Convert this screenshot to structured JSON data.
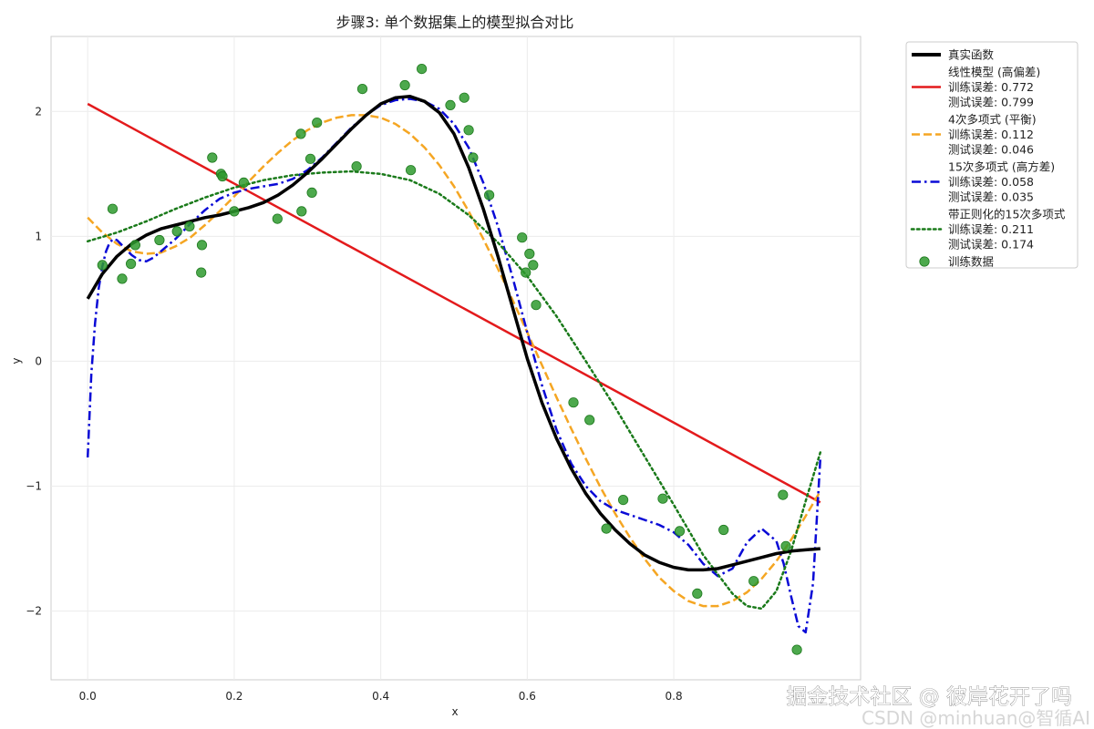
{
  "chart_data": {
    "type": "line",
    "title": "步骤3: 单个数据集上的模型拟合对比",
    "xlabel": "x",
    "ylabel": "y",
    "xlim": [
      -0.05,
      1.055
    ],
    "ylim": [
      -2.55,
      2.6
    ],
    "xticks": [
      0.0,
      0.2,
      0.4,
      0.6,
      0.8
    ],
    "xtick_labels": [
      "0.0",
      "0.2",
      "0.4",
      "0.6",
      "0.8"
    ],
    "yticks": [
      -2,
      -1,
      0,
      1,
      2
    ],
    "ytick_labels": [
      "−2",
      "−1",
      "0",
      "1",
      "2"
    ],
    "grid": true,
    "legend_position": "outside-top-right",
    "series": [
      {
        "name": "真实函数",
        "color": "#000000",
        "dash": "solid",
        "width": 3.5,
        "x": [
          0.0,
          0.02,
          0.04,
          0.06,
          0.08,
          0.1,
          0.12,
          0.14,
          0.16,
          0.18,
          0.2,
          0.22,
          0.24,
          0.26,
          0.28,
          0.3,
          0.32,
          0.34,
          0.36,
          0.38,
          0.4,
          0.42,
          0.44,
          0.46,
          0.48,
          0.5,
          0.52,
          0.54,
          0.56,
          0.58,
          0.6,
          0.62,
          0.64,
          0.66,
          0.68,
          0.7,
          0.72,
          0.74,
          0.76,
          0.78,
          0.8,
          0.82,
          0.84,
          0.86,
          0.88,
          0.9,
          0.92,
          0.94,
          0.96,
          0.98,
          1.0
        ],
        "y": [
          0.5,
          0.7,
          0.84,
          0.94,
          1.01,
          1.06,
          1.09,
          1.12,
          1.15,
          1.17,
          1.2,
          1.23,
          1.27,
          1.33,
          1.41,
          1.51,
          1.62,
          1.74,
          1.86,
          1.97,
          2.06,
          2.11,
          2.12,
          2.08,
          1.99,
          1.82,
          1.55,
          1.22,
          0.84,
          0.43,
          0.02,
          -0.33,
          -0.62,
          -0.86,
          -1.06,
          -1.22,
          -1.35,
          -1.46,
          -1.55,
          -1.61,
          -1.65,
          -1.67,
          -1.67,
          -1.66,
          -1.63,
          -1.6,
          -1.57,
          -1.54,
          -1.52,
          -1.51,
          -1.5
        ]
      },
      {
        "name": "线性模型 (高偏差)",
        "train_error_label": "训练误差: 0.772",
        "test_error_label": "测试误差: 0.799",
        "color": "#e31a1c",
        "dash": "solid",
        "width": 2.5,
        "x": [
          0.0,
          1.0
        ],
        "y": [
          2.06,
          -1.13
        ]
      },
      {
        "name": "4次多项式 (平衡)",
        "train_error_label": "训练误差: 0.112",
        "test_error_label": "测试误差: 0.046",
        "color": "#f5a623",
        "dash": "dashed",
        "width": 2.5,
        "x": [
          0.0,
          0.02,
          0.04,
          0.06,
          0.08,
          0.1,
          0.12,
          0.14,
          0.16,
          0.18,
          0.2,
          0.22,
          0.24,
          0.26,
          0.28,
          0.3,
          0.32,
          0.34,
          0.36,
          0.38,
          0.4,
          0.42,
          0.44,
          0.46,
          0.48,
          0.5,
          0.52,
          0.54,
          0.56,
          0.58,
          0.6,
          0.62,
          0.64,
          0.66,
          0.68,
          0.7,
          0.72,
          0.74,
          0.76,
          0.78,
          0.8,
          0.82,
          0.84,
          0.86,
          0.88,
          0.9,
          0.92,
          0.94,
          0.96,
          0.98,
          1.0
        ],
        "y": [
          1.15,
          1.03,
          0.94,
          0.88,
          0.86,
          0.87,
          0.92,
          0.99,
          1.09,
          1.2,
          1.32,
          1.44,
          1.56,
          1.67,
          1.77,
          1.85,
          1.91,
          1.95,
          1.97,
          1.97,
          1.95,
          1.9,
          1.82,
          1.71,
          1.57,
          1.4,
          1.2,
          0.98,
          0.74,
          0.49,
          0.23,
          -0.03,
          -0.29,
          -0.54,
          -0.78,
          -1.01,
          -1.22,
          -1.41,
          -1.58,
          -1.73,
          -1.84,
          -1.92,
          -1.96,
          -1.96,
          -1.92,
          -1.85,
          -1.74,
          -1.6,
          -1.43,
          -1.24,
          -1.04
        ]
      },
      {
        "name": "15次多项式 (高方差)",
        "train_error_label": "训练误差: 0.058",
        "test_error_label": "测试误差: 0.035",
        "color": "#0a0ad6",
        "dash": "dashdot",
        "width": 2.5,
        "x": [
          0.0,
          0.005,
          0.01,
          0.015,
          0.02,
          0.025,
          0.03,
          0.035,
          0.04,
          0.05,
          0.06,
          0.07,
          0.08,
          0.09,
          0.1,
          0.12,
          0.14,
          0.16,
          0.18,
          0.2,
          0.22,
          0.24,
          0.26,
          0.28,
          0.3,
          0.32,
          0.34,
          0.36,
          0.38,
          0.4,
          0.42,
          0.44,
          0.46,
          0.48,
          0.5,
          0.52,
          0.54,
          0.56,
          0.58,
          0.6,
          0.62,
          0.64,
          0.66,
          0.68,
          0.7,
          0.72,
          0.74,
          0.76,
          0.78,
          0.8,
          0.82,
          0.84,
          0.86,
          0.88,
          0.9,
          0.92,
          0.94,
          0.95,
          0.96,
          0.97,
          0.98,
          0.99,
          1.0
        ],
        "y": [
          -0.77,
          -0.1,
          0.3,
          0.58,
          0.76,
          0.88,
          0.95,
          0.98,
          0.97,
          0.91,
          0.85,
          0.81,
          0.8,
          0.83,
          0.88,
          0.98,
          1.1,
          1.21,
          1.3,
          1.35,
          1.38,
          1.4,
          1.42,
          1.46,
          1.53,
          1.63,
          1.75,
          1.87,
          1.97,
          2.05,
          2.09,
          2.1,
          2.08,
          2.02,
          1.9,
          1.71,
          1.43,
          1.08,
          0.67,
          0.23,
          -0.19,
          -0.55,
          -0.82,
          -1.0,
          -1.12,
          -1.19,
          -1.23,
          -1.27,
          -1.31,
          -1.37,
          -1.47,
          -1.62,
          -1.72,
          -1.66,
          -1.45,
          -1.34,
          -1.44,
          -1.62,
          -1.88,
          -2.12,
          -2.17,
          -1.78,
          -0.78
        ]
      },
      {
        "name": "带正则化的15次多项式",
        "train_error_label": "训练误差: 0.211",
        "test_error_label": "测试误差: 0.174",
        "color": "#1a7a1a",
        "dash": "dotted",
        "width": 2.5,
        "x": [
          0.0,
          0.04,
          0.08,
          0.12,
          0.16,
          0.2,
          0.24,
          0.28,
          0.32,
          0.36,
          0.4,
          0.44,
          0.48,
          0.52,
          0.56,
          0.6,
          0.64,
          0.68,
          0.72,
          0.76,
          0.8,
          0.84,
          0.88,
          0.9,
          0.92,
          0.94,
          0.96,
          0.98,
          1.0
        ],
        "y": [
          0.96,
          1.03,
          1.12,
          1.22,
          1.31,
          1.39,
          1.45,
          1.49,
          1.51,
          1.52,
          1.5,
          1.45,
          1.34,
          1.17,
          0.95,
          0.68,
          0.36,
          0.0,
          -0.37,
          -0.76,
          -1.15,
          -1.55,
          -1.86,
          -1.96,
          -1.98,
          -1.84,
          -1.52,
          -1.12,
          -0.73
        ]
      }
    ],
    "training_data": {
      "name": "训练数据",
      "color": "#2e9a2e",
      "x": [
        0.02,
        0.034,
        0.047,
        0.059,
        0.065,
        0.098,
        0.122,
        0.139,
        0.155,
        0.156,
        0.17,
        0.182,
        0.184,
        0.2,
        0.213,
        0.259,
        0.291,
        0.292,
        0.304,
        0.306,
        0.313,
        0.367,
        0.375,
        0.433,
        0.441,
        0.456,
        0.495,
        0.514,
        0.52,
        0.526,
        0.548,
        0.593,
        0.598,
        0.603,
        0.608,
        0.612,
        0.663,
        0.685,
        0.708,
        0.731,
        0.785,
        0.808,
        0.832,
        0.868,
        0.909,
        0.949,
        0.953,
        0.968
      ],
      "y": [
        0.77,
        1.22,
        0.66,
        0.78,
        0.93,
        0.97,
        1.04,
        1.08,
        0.71,
        0.93,
        1.63,
        1.5,
        1.48,
        1.2,
        1.43,
        1.14,
        1.82,
        1.2,
        1.62,
        1.35,
        1.91,
        1.56,
        2.18,
        2.21,
        1.53,
        2.34,
        2.05,
        2.11,
        1.85,
        1.63,
        1.33,
        0.99,
        0.71,
        0.86,
        0.77,
        0.45,
        -0.33,
        -0.47,
        -1.34,
        -1.11,
        -1.1,
        -1.36,
        -1.86,
        -1.35,
        -1.76,
        -1.07,
        -1.48,
        -2.31
      ]
    }
  },
  "legend": {
    "entries": [
      {
        "lines": [
          "真实函数"
        ]
      },
      {
        "lines": [
          "线性模型 (高偏差)",
          "训练误差: 0.772",
          "测试误差: 0.799"
        ]
      },
      {
        "lines": [
          "4次多项式 (平衡)",
          "训练误差: 0.112",
          "测试误差: 0.046"
        ]
      },
      {
        "lines": [
          "15次多项式 (高方差)",
          "训练误差: 0.058",
          "测试误差: 0.035"
        ]
      },
      {
        "lines": [
          "带正则化的15次多项式",
          "训练误差: 0.211",
          "测试误差: 0.174"
        ]
      },
      {
        "lines": [
          "训练数据"
        ]
      }
    ]
  },
  "watermark": {
    "line1": "掘金技术社区 @ 彼岸花开了吗",
    "line2": "CSDN @minhuan@智循AI"
  }
}
